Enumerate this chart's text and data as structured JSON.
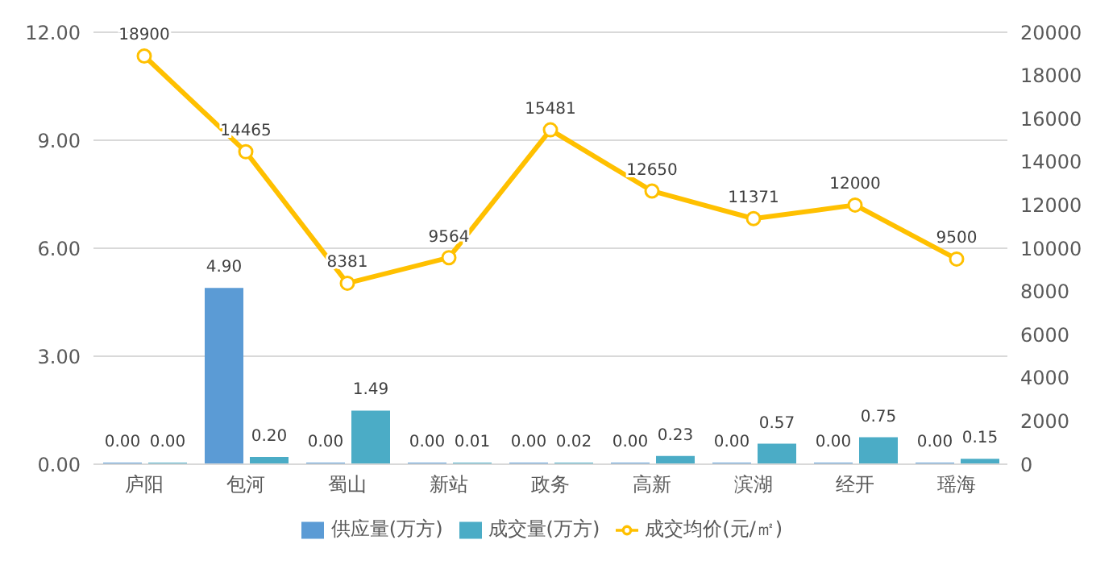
{
  "chart_data": {
    "type": "bar",
    "categories": [
      "庐阳",
      "包河",
      "蜀山",
      "新站",
      "政务",
      "高新",
      "滨湖",
      "经开",
      "瑶海"
    ],
    "series": [
      {
        "name": "供应量(万方)",
        "color": "#5b9bd5",
        "values": [
          0,
          4.9,
          0,
          0,
          0,
          0,
          0,
          0,
          0
        ],
        "value_labels": [
          "0.00",
          "4.90",
          "0.00",
          "0.00",
          "0.00",
          "0.00",
          "0.00",
          "0.00",
          "0.00"
        ]
      },
      {
        "name": "成交量(万方)",
        "color": "#4bacc6",
        "values": [
          0,
          0.2,
          1.49,
          0.01,
          0.02,
          0.23,
          0.57,
          0.75,
          0.15
        ],
        "value_labels": [
          "0.00",
          "0.20",
          "1.49",
          "0.01",
          "0.02",
          "0.23",
          "0.57",
          "0.75",
          "0.15"
        ]
      },
      {
        "name": "成交均价(元/㎡)",
        "type": "line",
        "axis": "y2",
        "color": "#ffc000",
        "marker": "circle",
        "values": [
          18900,
          14465,
          8381,
          9564,
          15481,
          12650,
          11371,
          12000,
          9500
        ],
        "value_labels": [
          "18900",
          "14465",
          "8381",
          "9564",
          "15481",
          "12650",
          "11371",
          "12000",
          "9500"
        ]
      }
    ],
    "ylim": [
      0,
      12
    ],
    "yticks": [
      {
        "value": 0,
        "label": "0.00"
      },
      {
        "value": 3,
        "label": "3.00"
      },
      {
        "value": 6,
        "label": "6.00"
      },
      {
        "value": 9,
        "label": "9.00"
      },
      {
        "value": 12,
        "label": "12.00"
      }
    ],
    "y2lim": [
      0,
      20000
    ],
    "y2ticks": [
      0,
      2000,
      4000,
      6000,
      8000,
      10000,
      12000,
      14000,
      16000,
      18000,
      20000
    ],
    "grid": "y",
    "legend": "bottom"
  }
}
